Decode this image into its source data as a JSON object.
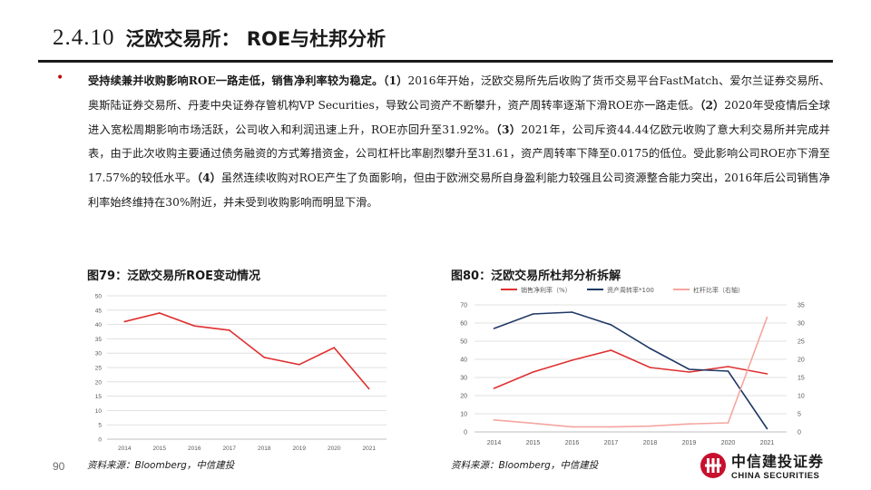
{
  "header": {
    "number": "2.4.10",
    "title": "泛欧交易所： ROE与杜邦分析"
  },
  "body": {
    "bold_lead": "受持续兼并收购影响ROE一路走低，销售净利率较为稳定。",
    "segments": [
      {
        "bold": "（1）",
        "text": "2016年开始，泛欧交易所先后收购了货币交易平台FastMatch、爱尔兰证券交易所、奥斯陆证券交易所、丹麦中央证券存管机构VP Securities，导致公司资产不断攀升，资产周转率逐渐下滑ROE亦一路走低。"
      },
      {
        "bold": "（2）",
        "text": "2020年受疫情后全球进入宽松周期影响市场活跃，公司收入和利润迅速上升，ROE亦回升至31.92%。"
      },
      {
        "bold": "（3）",
        "text": "2021年，公司斥资44.44亿欧元收购了意大利交易所并完成并表，由于此次收购主要通过债务融资的方式筹措资金，公司杠杆比率剧烈攀升至31.61，资产周转率下降至0.0175的低位。受此影响公司ROE亦下滑至17.57%的较低水平。"
      },
      {
        "bold": "（4）",
        "text": "虽然连续收购对ROE产生了负面影响，但由于欧洲交易所自身盈利能力较强且公司资源整合能力突出，2016年后公司销售净利率始终维持在30%附近，并未受到收购影响而明显下滑。"
      }
    ]
  },
  "figure79": {
    "title": "图79：泛欧交易所ROE变动情况",
    "source": "资料来源：Bloomberg，中信建投"
  },
  "figure80": {
    "title": "图80：泛欧交易所杜邦分析拆解",
    "source": "资料来源：Bloomberg，中信建投"
  },
  "footer": {
    "page": "90",
    "logo_cn": "中信建投证券",
    "logo_en": "CHINA SECURITIES"
  },
  "colors": {
    "red": "#e03030",
    "navy": "#1f3864",
    "pink": "#f4a6a0",
    "grid": "#d9d9d9",
    "axis_text": "#595959"
  },
  "chart_data": [
    {
      "type": "line",
      "title": "ROE",
      "x": [
        "2014",
        "2015",
        "2016",
        "2017",
        "2018",
        "2019",
        "2020",
        "2021"
      ],
      "series": [
        {
          "name": "ROE",
          "values": [
            41,
            44,
            39.5,
            38,
            28.5,
            26,
            31.92,
            17.57
          ]
        }
      ],
      "ylim": [
        0,
        50
      ],
      "yticks": [
        0,
        5,
        10,
        15,
        20,
        25,
        30,
        35,
        40,
        45,
        50
      ],
      "grid": true
    },
    {
      "type": "line",
      "title": "杜邦分析",
      "x": [
        "2014",
        "2015",
        "2016",
        "2017",
        "2018",
        "2019",
        "2020",
        "2021"
      ],
      "series": [
        {
          "name": "销售净利率（%）",
          "axis": "left",
          "values": [
            24,
            33,
            39.5,
            45,
            35.5,
            33,
            36,
            32
          ]
        },
        {
          "name": "资产周转率*100",
          "axis": "left",
          "values": [
            57,
            65,
            66,
            59,
            46,
            34.5,
            33.5,
            1.75
          ]
        },
        {
          "name": "杠杆比率（右轴）",
          "axis": "right",
          "values": [
            3.3,
            2.4,
            1.4,
            1.4,
            1.6,
            2.2,
            2.5,
            31.61
          ]
        }
      ],
      "ylim": [
        0,
        70
      ],
      "yticks": [
        0,
        10,
        20,
        30,
        40,
        50,
        60,
        70
      ],
      "ylim_right": [
        0,
        35
      ],
      "yticks_right": [
        0,
        5,
        10,
        15,
        20,
        25,
        30,
        35
      ],
      "legend_position": "top",
      "grid": true
    }
  ]
}
